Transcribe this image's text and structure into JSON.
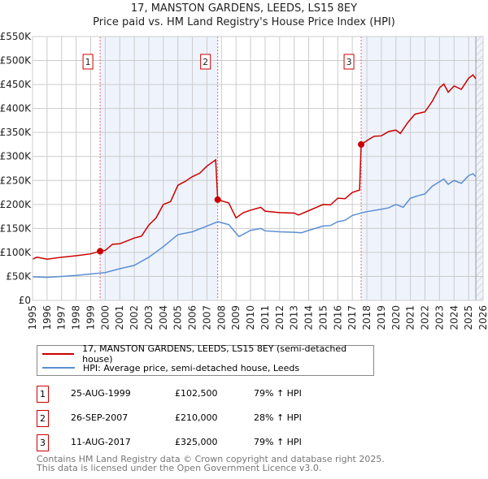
{
  "chart_data": {
    "type": "line",
    "title": "17, MANSTON GARDENS, LEEDS, LS15 8EY",
    "subtitle": "Price paid vs. HM Land Registry's House Price Index (HPI)",
    "xlim": [
      1995,
      2026
    ],
    "ylim": [
      0,
      550000
    ],
    "y_ticks": [
      {
        "v": 0,
        "l": "£0"
      },
      {
        "v": 50000,
        "l": "£50K"
      },
      {
        "v": 100000,
        "l": "£100K"
      },
      {
        "v": 150000,
        "l": "£150K"
      },
      {
        "v": 200000,
        "l": "£200K"
      },
      {
        "v": 250000,
        "l": "£250K"
      },
      {
        "v": 300000,
        "l": "£300K"
      },
      {
        "v": 350000,
        "l": "£350K"
      },
      {
        "v": 400000,
        "l": "£400K"
      },
      {
        "v": 450000,
        "l": "£450K"
      },
      {
        "v": 500000,
        "l": "£500K"
      },
      {
        "v": 550000,
        "l": "£550K"
      }
    ],
    "x_ticks": [
      "1995",
      "1996",
      "1997",
      "1998",
      "1999",
      "2000",
      "2001",
      "2002",
      "2003",
      "2004",
      "2005",
      "2006",
      "2007",
      "2008",
      "2009",
      "2010",
      "2011",
      "2012",
      "2013",
      "2014",
      "2015",
      "2016",
      "2017",
      "2018",
      "2019",
      "2020",
      "2021",
      "2022",
      "2023",
      "2024",
      "2025",
      "2026"
    ],
    "grid": true,
    "series": [
      {
        "name": "17, MANSTON GARDENS, LEEDS, LS15 8EY (semi-detached house)",
        "color": "#cc0000",
        "x": [
          1995,
          1995.3,
          1996,
          1997,
          1998,
          1999,
          1999.65,
          2000,
          2000.5,
          2001,
          2002,
          2002.5,
          2003,
          2003.5,
          2004,
          2004.5,
          2005,
          2005.5,
          2006,
          2006.5,
          2007,
          2007.6,
          2007.74,
          2008.5,
          2009,
          2009.5,
          2010,
          2010.7,
          2011,
          2012,
          2013,
          2013.3,
          2014,
          2015,
          2015.5,
          2016,
          2016.5,
          2017,
          2017.5,
          2017.61,
          2018,
          2018.5,
          2019,
          2019.5,
          2020,
          2020.3,
          2020.8,
          2021.3,
          2022,
          2022.5,
          2023,
          2023.3,
          2023.6,
          2024,
          2024.5,
          2025,
          2025.3,
          2025.5
        ],
        "y": [
          86000,
          90000,
          86000,
          90000,
          93000,
          97000,
          102500,
          104000,
          117000,
          118000,
          130000,
          134000,
          157000,
          172000,
          200000,
          206000,
          240000,
          248000,
          258000,
          265000,
          280000,
          293000,
          210000,
          203000,
          172000,
          183000,
          188000,
          194000,
          186000,
          183000,
          182000,
          178000,
          187000,
          200000,
          199000,
          213000,
          212000,
          225000,
          230000,
          325000,
          333000,
          342000,
          343000,
          352000,
          355000,
          348000,
          370000,
          388000,
          393000,
          415000,
          443000,
          451000,
          434000,
          447000,
          440000,
          463000,
          470000,
          462000
        ]
      },
      {
        "name": "HPI: Average price, semi-detached house, Leeds",
        "color": "#5b8fd4",
        "x": [
          1995,
          1996,
          1997,
          1998,
          1999,
          2000,
          2001,
          2002,
          2003,
          2004,
          2005,
          2006,
          2007,
          2007.75,
          2008.5,
          2009.2,
          2010,
          2010.7,
          2011,
          2012,
          2013,
          2013.5,
          2014,
          2015,
          2015.5,
          2016,
          2016.5,
          2017,
          2017.6,
          2018,
          2019,
          2019.5,
          2020,
          2020.5,
          2021,
          2021.5,
          2022,
          2022.5,
          2023.3,
          2023.6,
          2024,
          2024.5,
          2025,
          2025.3,
          2025.5
        ],
        "y": [
          49000,
          48000,
          50000,
          52000,
          55000,
          58000,
          66000,
          73000,
          90000,
          112000,
          137000,
          143000,
          155000,
          164000,
          158000,
          133000,
          146000,
          150000,
          145000,
          143000,
          142000,
          141000,
          146000,
          155000,
          156000,
          164000,
          167000,
          177000,
          182000,
          185000,
          190000,
          193000,
          200000,
          194000,
          213000,
          218000,
          222000,
          238000,
          253000,
          242000,
          250000,
          244000,
          260000,
          264000,
          258000
        ]
      }
    ],
    "sales": [
      {
        "n": "1",
        "x": 1999.65,
        "price": 102500,
        "date": "25-AUG-1999",
        "price_label": "£102,500",
        "hpi": "79% ↑ HPI"
      },
      {
        "n": "2",
        "x": 2007.74,
        "price": 210000,
        "date": "26-SEP-2007",
        "price_label": "£210,000",
        "hpi": "28% ↑ HPI"
      },
      {
        "n": "3",
        "x": 2017.61,
        "price": 325000,
        "date": "11-AUG-2017",
        "price_label": "£325,000",
        "hpi": "79% ↑ HPI"
      }
    ],
    "shade_color": "#eef3fc",
    "hatch_from": 2025.5
  },
  "footer": {
    "line1": "Contains HM Land Registry data © Crown copyright and database right 2025.",
    "line2": "This data is licensed under the Open Government Licence v3.0."
  }
}
